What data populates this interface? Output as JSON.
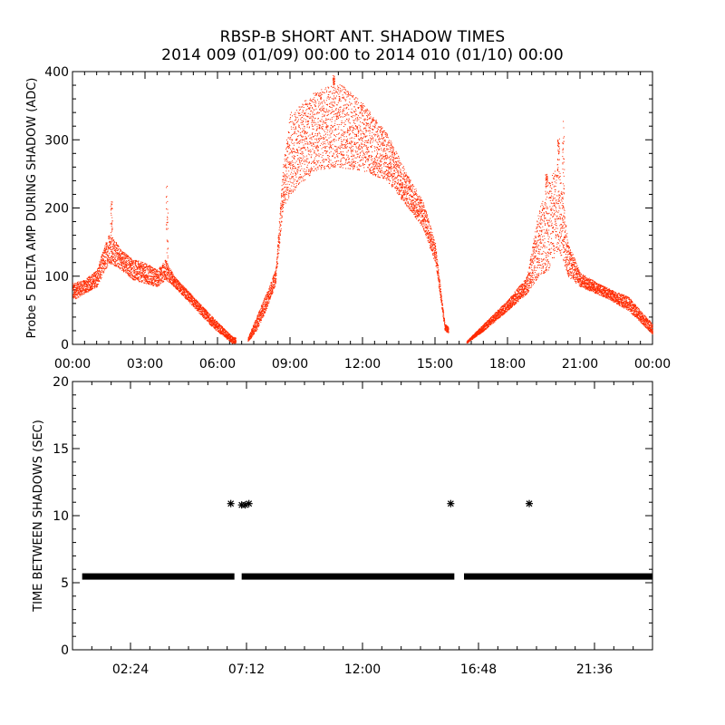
{
  "title_line1": "RBSP-B SHORT ANT. SHADOW TIMES",
  "title_line2": "2014 009 (01/09) 00:00 to 2014 010 (01/10) 00:00",
  "colors": {
    "top_points": "#ff2a00",
    "bottom_points": "#000000",
    "axes": "#000000"
  },
  "chart_data": [
    {
      "type": "scatter",
      "ylabel": "Probe 5 DELTA AMP DURING SHADOW (ADC)",
      "xlabel": "",
      "xlim_hours": [
        0,
        24
      ],
      "ylim": [
        0,
        400
      ],
      "x_ticks_hours": [
        0,
        3,
        6,
        9,
        12,
        15,
        18,
        21,
        24
      ],
      "x_tick_labels": [
        "00:00",
        "03:00",
        "06:00",
        "09:00",
        "12:00",
        "15:00",
        "18:00",
        "21:00",
        "00:00"
      ],
      "y_ticks": [
        0,
        100,
        200,
        300,
        400
      ],
      "y_tick_labels": [
        "0",
        "100",
        "200",
        "300",
        "400"
      ],
      "envelope_hours": [
        0,
        0.5,
        1.0,
        1.5,
        2.0,
        2.5,
        3.0,
        3.5,
        3.85,
        4.2,
        5.0,
        5.8,
        6.6,
        7.2,
        7.6,
        8.0,
        8.4,
        8.7,
        9.0,
        10.0,
        11.0,
        12.0,
        13.0,
        14.0,
        14.5,
        15.0,
        15.4,
        16.3,
        17.0,
        18.0,
        18.8,
        19.3,
        19.7,
        20.1,
        20.5,
        21.0,
        22.0,
        23.0,
        24.0
      ],
      "envelope_low": [
        65,
        75,
        85,
        120,
        110,
        95,
        90,
        85,
        95,
        85,
        55,
        25,
        2,
        2,
        20,
        50,
        90,
        200,
        220,
        255,
        260,
        255,
        240,
        195,
        170,
        120,
        20,
        2,
        20,
        50,
        75,
        100,
        110,
        140,
        100,
        85,
        70,
        50,
        15
      ],
      "envelope_high": [
        90,
        95,
        110,
        165,
        140,
        125,
        120,
        110,
        125,
        100,
        70,
        40,
        12,
        5,
        40,
        75,
        110,
        260,
        340,
        370,
        385,
        355,
        310,
        240,
        210,
        150,
        30,
        5,
        30,
        65,
        100,
        200,
        240,
        270,
        150,
        105,
        85,
        70,
        30
      ],
      "spikes": [
        {
          "hour": 1.6,
          "value": 215
        },
        {
          "hour": 3.9,
          "value": 235
        },
        {
          "hour": 10.8,
          "value": 395
        },
        {
          "hour": 19.6,
          "value": 250
        },
        {
          "hour": 20.3,
          "value": 330
        },
        {
          "hour": 20.1,
          "value": 305
        }
      ]
    },
    {
      "type": "scatter",
      "ylabel": "TIME BETWEEN SHADOWS (SEC)",
      "xlabel": "",
      "xlim_hours": [
        0,
        24
      ],
      "ylim": [
        0,
        20
      ],
      "x_ticks_hours": [
        2.4,
        7.2,
        12.0,
        16.8,
        21.6
      ],
      "x_tick_labels": [
        "02:24",
        "07:12",
        "12:00",
        "16:48",
        "21:36"
      ],
      "y_ticks": [
        0,
        5,
        10,
        15,
        20
      ],
      "y_tick_labels": [
        "0",
        "5",
        "10",
        "15",
        "20"
      ],
      "baseline_value": 5.5,
      "baseline_segments_hours": [
        [
          0.4,
          6.7
        ],
        [
          7.0,
          15.8
        ],
        [
          16.2,
          24.0
        ]
      ],
      "outliers": [
        {
          "hour": 6.55,
          "value": 10.9
        },
        {
          "hour": 7.0,
          "value": 10.8
        },
        {
          "hour": 7.15,
          "value": 10.8
        },
        {
          "hour": 7.3,
          "value": 10.9
        },
        {
          "hour": 15.65,
          "value": 10.9
        },
        {
          "hour": 18.9,
          "value": 10.9
        }
      ]
    }
  ]
}
